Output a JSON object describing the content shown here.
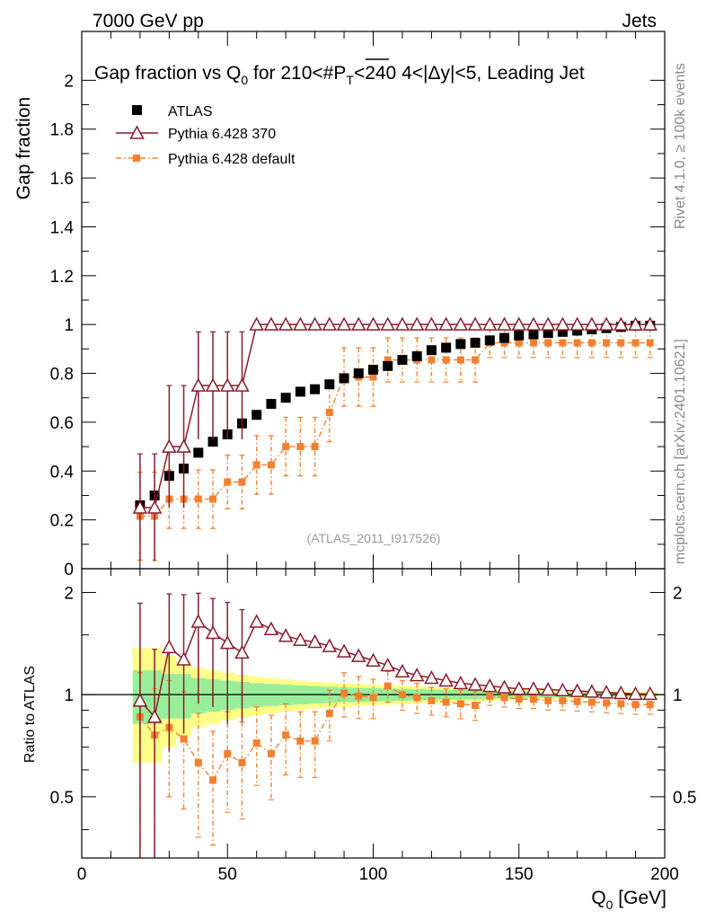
{
  "header": {
    "left_label": "7000 GeV pp",
    "right_label": "Jets",
    "side_label_top": "Rivet 4.1.0, ≥ 100k events",
    "side_label_bottom": "mcplots.cern.ch [arXiv:2401.10621]",
    "watermark": "(ATLAS_2011_I917526)"
  },
  "chart_data": [
    {
      "type": "scatter",
      "title_parts": {
        "prefix": "Gap fraction vs Q",
        "sub0": "0",
        "mid": " for 210<#",
        "pt": "P",
        "pt_sub": "T",
        "suffix": "<240  4<|Δy|<5, Leading Jet"
      },
      "ylabel": "Gap fraction",
      "ylim": [
        0,
        2.2
      ],
      "yticks": [
        0,
        0.2,
        0.4,
        0.6,
        0.8,
        1,
        1.2,
        1.4,
        1.6,
        1.8,
        2
      ],
      "ytick_labels": [
        "0",
        "0.2",
        "0.4",
        "0.6",
        "0.8",
        "1",
        "1.2",
        "1.4",
        "1.6",
        "1.8",
        "2"
      ],
      "x": [
        20,
        25,
        30,
        35,
        40,
        45,
        50,
        55,
        60,
        65,
        70,
        75,
        80,
        85,
        90,
        95,
        100,
        105,
        110,
        115,
        120,
        125,
        130,
        135,
        140,
        145,
        150,
        155,
        160,
        165,
        170,
        175,
        180,
        185,
        190,
        195
      ],
      "series": [
        {
          "name": "ATLAS",
          "color": "#000000",
          "marker": "square",
          "values": [
            0.26,
            0.3,
            0.38,
            0.41,
            0.475,
            0.52,
            0.55,
            0.595,
            0.63,
            0.675,
            0.7,
            0.725,
            0.735,
            0.755,
            0.78,
            0.8,
            0.815,
            0.83,
            0.855,
            0.87,
            0.895,
            0.905,
            0.92,
            0.925,
            0.935,
            0.945,
            0.955,
            0.96,
            0.965,
            0.97,
            0.975,
            0.98,
            0.985,
            0.99,
            0.995,
            0.995
          ]
        },
        {
          "name": "Pythia 6.428 370",
          "color": "#8b1a2b",
          "marker": "triangle-open",
          "line": "solid",
          "values": [
            0.25,
            0.25,
            0.5,
            0.5,
            0.75,
            0.75,
            0.75,
            0.75,
            1,
            1,
            1,
            1,
            1,
            1,
            1,
            1,
            1,
            1,
            1,
            1,
            1,
            1,
            1,
            1,
            1,
            1,
            1,
            1,
            1,
            1,
            1,
            1,
            1,
            1,
            1,
            1
          ],
          "errors": [
            0.22,
            0.22,
            0.25,
            0.25,
            0.22,
            0.22,
            0.22,
            0.22,
            0,
            0,
            0,
            0,
            0,
            0,
            0,
            0,
            0,
            0,
            0,
            0,
            0,
            0,
            0,
            0,
            0,
            0,
            0,
            0,
            0,
            0,
            0,
            0,
            0,
            0,
            0,
            0
          ]
        },
        {
          "name": "Pythia 6.428 default",
          "color": "#f28030",
          "marker": "square-filled",
          "line": "dashdot",
          "values": [
            0.215,
            0.215,
            0.285,
            0.285,
            0.285,
            0.285,
            0.355,
            0.355,
            0.425,
            0.425,
            0.5,
            0.5,
            0.5,
            0.64,
            0.785,
            0.785,
            0.785,
            0.855,
            0.855,
            0.855,
            0.855,
            0.855,
            0.855,
            0.855,
            0.925,
            0.925,
            0.925,
            0.925,
            0.925,
            0.925,
            0.925,
            0.925,
            0.925,
            0.925,
            0.925,
            0.925
          ],
          "errors": [
            0.18,
            0.18,
            0.12,
            0.12,
            0.12,
            0.12,
            0.11,
            0.11,
            0.12,
            0.12,
            0.12,
            0.12,
            0.12,
            0.12,
            0.12,
            0.12,
            0.12,
            0.09,
            0.09,
            0.09,
            0.09,
            0.09,
            0.09,
            0.09,
            0.06,
            0.06,
            0.06,
            0.06,
            0.06,
            0.06,
            0.06,
            0.06,
            0.06,
            0.06,
            0.06,
            0.06
          ]
        }
      ],
      "legend": "top-left"
    },
    {
      "type": "scatter",
      "ylabel": "Ratio to ATLAS",
      "xlabel_main": "Q",
      "xlabel_sub": "0",
      "xlabel_unit": " [GeV]",
      "ylim": [
        0.33,
        2.35
      ],
      "yscale": "log",
      "xlim": [
        0,
        200
      ],
      "xticks": [
        0,
        50,
        100,
        150,
        200
      ],
      "xtick_labels": [
        "0",
        "50",
        "100",
        "150",
        "200"
      ],
      "yticks": [
        0.5,
        1,
        2
      ],
      "ytick_labels": [
        "0.5",
        "1",
        "2"
      ],
      "reference_line": 1,
      "x": [
        20,
        25,
        30,
        35,
        40,
        45,
        50,
        55,
        60,
        65,
        70,
        75,
        80,
        85,
        90,
        95,
        100,
        105,
        110,
        115,
        120,
        125,
        130,
        135,
        140,
        145,
        150,
        155,
        160,
        165,
        170,
        175,
        180,
        185,
        190,
        195
      ],
      "bands": {
        "inner_color": "#99ee99",
        "outer_color": "#ffff88",
        "inner_halfwidth": [
          0.18,
          0.18,
          0.15,
          0.15,
          0.12,
          0.11,
          0.1,
          0.09,
          0.08,
          0.075,
          0.07,
          0.065,
          0.06,
          0.055,
          0.05,
          0.048,
          0.045,
          0.043,
          0.04,
          0.038,
          0.036,
          0.034,
          0.032,
          0.03,
          0.028,
          0.026,
          0.024,
          0.022,
          0.02,
          0.018,
          0.016,
          0.015,
          0.014,
          0.013,
          0.012,
          0.012
        ],
        "outer_halfwidth": [
          0.37,
          0.37,
          0.3,
          0.25,
          0.2,
          0.18,
          0.16,
          0.145,
          0.13,
          0.12,
          0.11,
          0.1,
          0.09,
          0.085,
          0.08,
          0.075,
          0.07,
          0.066,
          0.062,
          0.058,
          0.055,
          0.052,
          0.048,
          0.045,
          0.042,
          0.039,
          0.036,
          0.033,
          0.03,
          0.028,
          0.026,
          0.024,
          0.022,
          0.021,
          0.02,
          0.02
        ]
      },
      "series": [
        {
          "name": "Pythia 6.428 370",
          "color": "#8b1a2b",
          "marker": "triangle-open",
          "line": "solid",
          "values": [
            0.96,
            0.86,
            1.38,
            1.27,
            1.64,
            1.52,
            1.42,
            1.33,
            1.64,
            1.56,
            1.49,
            1.45,
            1.43,
            1.39,
            1.34,
            1.3,
            1.26,
            1.22,
            1.17,
            1.14,
            1.12,
            1.1,
            1.08,
            1.07,
            1.06,
            1.05,
            1.04,
            1.04,
            1.035,
            1.03,
            1.025,
            1.02,
            1.015,
            1.01,
            1.005,
            1.005
          ],
          "err_lo": [
            0.96,
            0.86,
            0.7,
            0.5,
            0.7,
            0.6,
            0.6,
            0.5,
            0,
            0,
            0,
            0,
            0,
            0,
            0,
            0,
            0,
            0,
            0,
            0,
            0,
            0,
            0,
            0,
            0,
            0,
            0,
            0,
            0,
            0,
            0,
            0,
            0,
            0,
            0,
            0
          ],
          "err_hi": [
            0.9,
            0.5,
            0.6,
            0.7,
            0.35,
            0.4,
            0.45,
            0.45,
            0,
            0,
            0,
            0,
            0,
            0,
            0,
            0,
            0,
            0,
            0,
            0,
            0,
            0,
            0,
            0,
            0,
            0,
            0,
            0,
            0,
            0,
            0,
            0,
            0,
            0,
            0,
            0
          ]
        },
        {
          "name": "Pythia 6.428 default",
          "color": "#f28030",
          "marker": "square-filled",
          "line": "dashdot",
          "values": [
            0.86,
            0.76,
            0.8,
            0.74,
            0.63,
            0.56,
            0.67,
            0.63,
            0.72,
            0.67,
            0.76,
            0.73,
            0.73,
            0.88,
            1.01,
            0.99,
            0.98,
            1.06,
            1.0,
            0.98,
            0.96,
            0.95,
            0.94,
            0.93,
            0.99,
            0.98,
            0.97,
            0.97,
            0.96,
            0.96,
            0.955,
            0.95,
            0.945,
            0.94,
            0.935,
            0.935
          ],
          "err_lo": [
            0.86,
            0.76,
            0.3,
            0.28,
            0.25,
            0.2,
            0.22,
            0.2,
            0.18,
            0.18,
            0.18,
            0.16,
            0.16,
            0.15,
            0.15,
            0.14,
            0.13,
            0.11,
            0.1,
            0.1,
            0.09,
            0.09,
            0.09,
            0.09,
            0.06,
            0.06,
            0.06,
            0.06,
            0.06,
            0.06,
            0.06,
            0.06,
            0.06,
            0.06,
            0.06,
            0.06
          ],
          "err_hi": [
            0.3,
            0.28,
            0.3,
            0.28,
            0.25,
            0.22,
            0.22,
            0.2,
            0.2,
            0.2,
            0.18,
            0.16,
            0.16,
            0.15,
            0.15,
            0.14,
            0.13,
            0.11,
            0.1,
            0.1,
            0.09,
            0.09,
            0.09,
            0.09,
            0.06,
            0.06,
            0.06,
            0.06,
            0.06,
            0.06,
            0.06,
            0.06,
            0.06,
            0.06,
            0.06,
            0.06
          ]
        }
      ]
    }
  ]
}
